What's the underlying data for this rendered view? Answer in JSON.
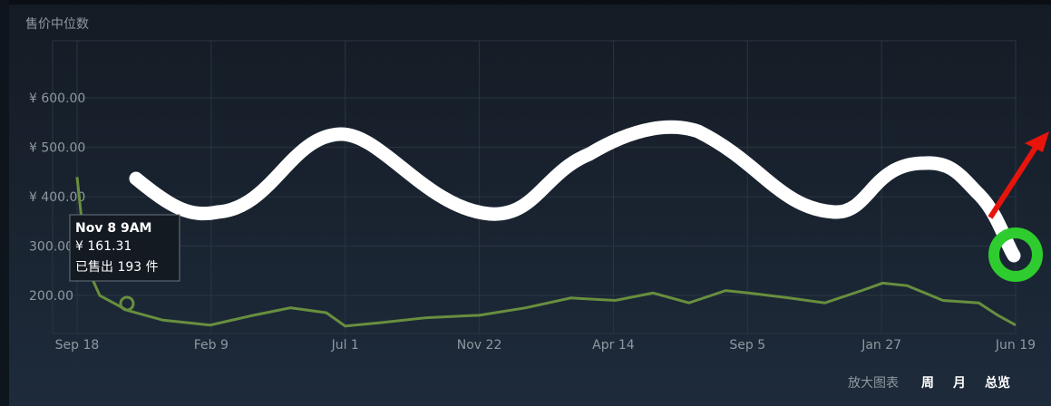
{
  "chart_data": {
    "type": "line",
    "title": "售价中位数",
    "x": [
      0,
      10,
      24,
      53,
      91,
      141,
      187,
      226,
      264,
      284,
      322,
      370,
      426,
      475,
      523,
      570,
      610,
      648,
      687,
      712,
      754,
      792,
      831,
      853,
      879,
      917,
      955,
      975,
      994
    ],
    "series": [
      {
        "name": "售价中位数",
        "color": "#688f3e",
        "values": [
          440,
          260,
          200,
          170,
          150,
          140,
          160,
          175,
          165,
          138,
          145,
          155,
          160,
          175,
          195,
          190,
          205,
          185,
          210,
          205,
          195,
          185,
          210,
          225,
          220,
          190,
          185,
          160,
          140
        ]
      }
    ],
    "xlim": [
      0,
      994
    ],
    "xticks": [
      {
        "value": 0,
        "label": "Sep 18"
      },
      {
        "value": 142,
        "label": "Feb 9"
      },
      {
        "value": 284,
        "label": "Jul 1"
      },
      {
        "value": 426,
        "label": "Nov 22"
      },
      {
        "value": 568,
        "label": "Apr 14"
      },
      {
        "value": 710,
        "label": "Sep 5"
      },
      {
        "value": 852,
        "label": "Jan 27"
      },
      {
        "value": 994,
        "label": "Jun 19"
      }
    ],
    "ylim": [
      123,
      716
    ],
    "yticks": [
      {
        "value": 200,
        "label": "200.00"
      },
      {
        "value": 300,
        "label": "300.00"
      },
      {
        "value": 400,
        "label": "¥ 400.00"
      },
      {
        "value": 500,
        "label": "¥ 500.00"
      },
      {
        "value": 600,
        "label": "¥ 600.00"
      }
    ],
    "grid": true,
    "tooltip": {
      "date": "Nov 8 9AM",
      "price": "¥ 161.31",
      "sold": "已售出 193 件"
    },
    "controls": {
      "label": "放大图表",
      "options": [
        "周",
        "月",
        "总览"
      ]
    }
  }
}
